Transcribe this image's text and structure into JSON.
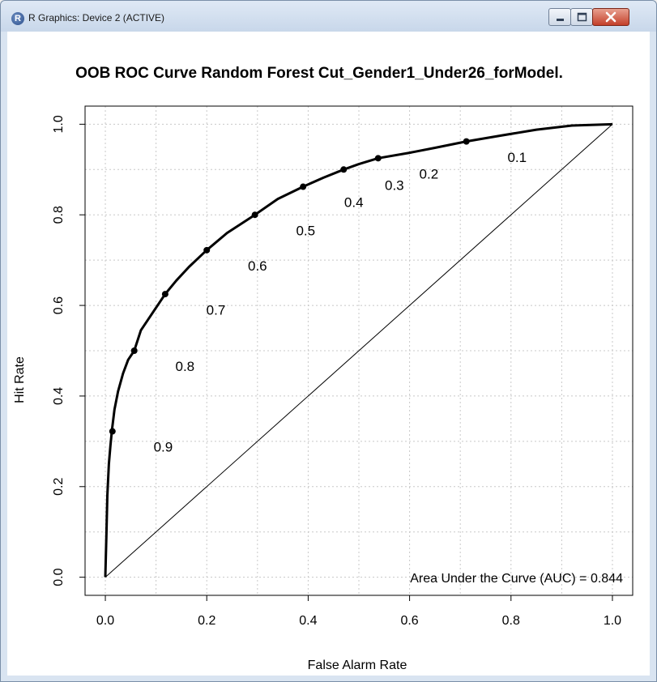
{
  "window": {
    "title": "R Graphics: Device 2 (ACTIVE)",
    "icon": "r-logo-icon",
    "controls": [
      "minimize-icon",
      "maximize-icon",
      "close-icon"
    ]
  },
  "chart_data": {
    "type": "line",
    "title": "OOB ROC Curve Random Forest Cut_Gender1_Under26_forModel.",
    "xlabel": "False Alarm Rate",
    "ylabel": "Hit Rate",
    "xlim": [
      0,
      1
    ],
    "ylim": [
      0,
      1
    ],
    "xticks": [
      "0.0",
      "0.2",
      "0.4",
      "0.6",
      "0.8",
      "1.0"
    ],
    "yticks": [
      "0.0",
      "0.2",
      "0.4",
      "0.6",
      "0.8",
      "1.0"
    ],
    "grid": true,
    "roc_curve": {
      "x": [
        0,
        0.002,
        0.004,
        0.007,
        0.01,
        0.013,
        0.018,
        0.025,
        0.035,
        0.045,
        0.057,
        0.07,
        0.085,
        0.1,
        0.118,
        0.14,
        0.165,
        0.2,
        0.24,
        0.295,
        0.34,
        0.39,
        0.43,
        0.47,
        0.5,
        0.538,
        0.6,
        0.65,
        0.712,
        0.78,
        0.85,
        0.92,
        1.0
      ],
      "y": [
        0,
        0.09,
        0.18,
        0.25,
        0.29,
        0.325,
        0.37,
        0.41,
        0.45,
        0.48,
        0.5,
        0.545,
        0.57,
        0.595,
        0.625,
        0.655,
        0.685,
        0.722,
        0.76,
        0.8,
        0.835,
        0.862,
        0.882,
        0.9,
        0.912,
        0.925,
        0.937,
        0.948,
        0.962,
        0.975,
        0.988,
        0.997,
        1.0
      ]
    },
    "threshold_points": [
      {
        "label": "0.9",
        "x": 0.014,
        "y": 0.322
      },
      {
        "label": "0.8",
        "x": 0.057,
        "y": 0.5
      },
      {
        "label": "0.7",
        "x": 0.118,
        "y": 0.625
      },
      {
        "label": "0.6",
        "x": 0.2,
        "y": 0.722
      },
      {
        "label": "0.5",
        "x": 0.295,
        "y": 0.8
      },
      {
        "label": "0.4",
        "x": 0.39,
        "y": 0.862
      },
      {
        "label": "0.3",
        "x": 0.47,
        "y": 0.9
      },
      {
        "label": "0.2",
        "x": 0.538,
        "y": 0.925
      },
      {
        "label": "0.1",
        "x": 0.712,
        "y": 0.962
      }
    ],
    "reference_line": {
      "x": [
        0,
        1
      ],
      "y": [
        0,
        1
      ]
    },
    "annotation": "Area Under the Curve (AUC) = 0.844"
  }
}
